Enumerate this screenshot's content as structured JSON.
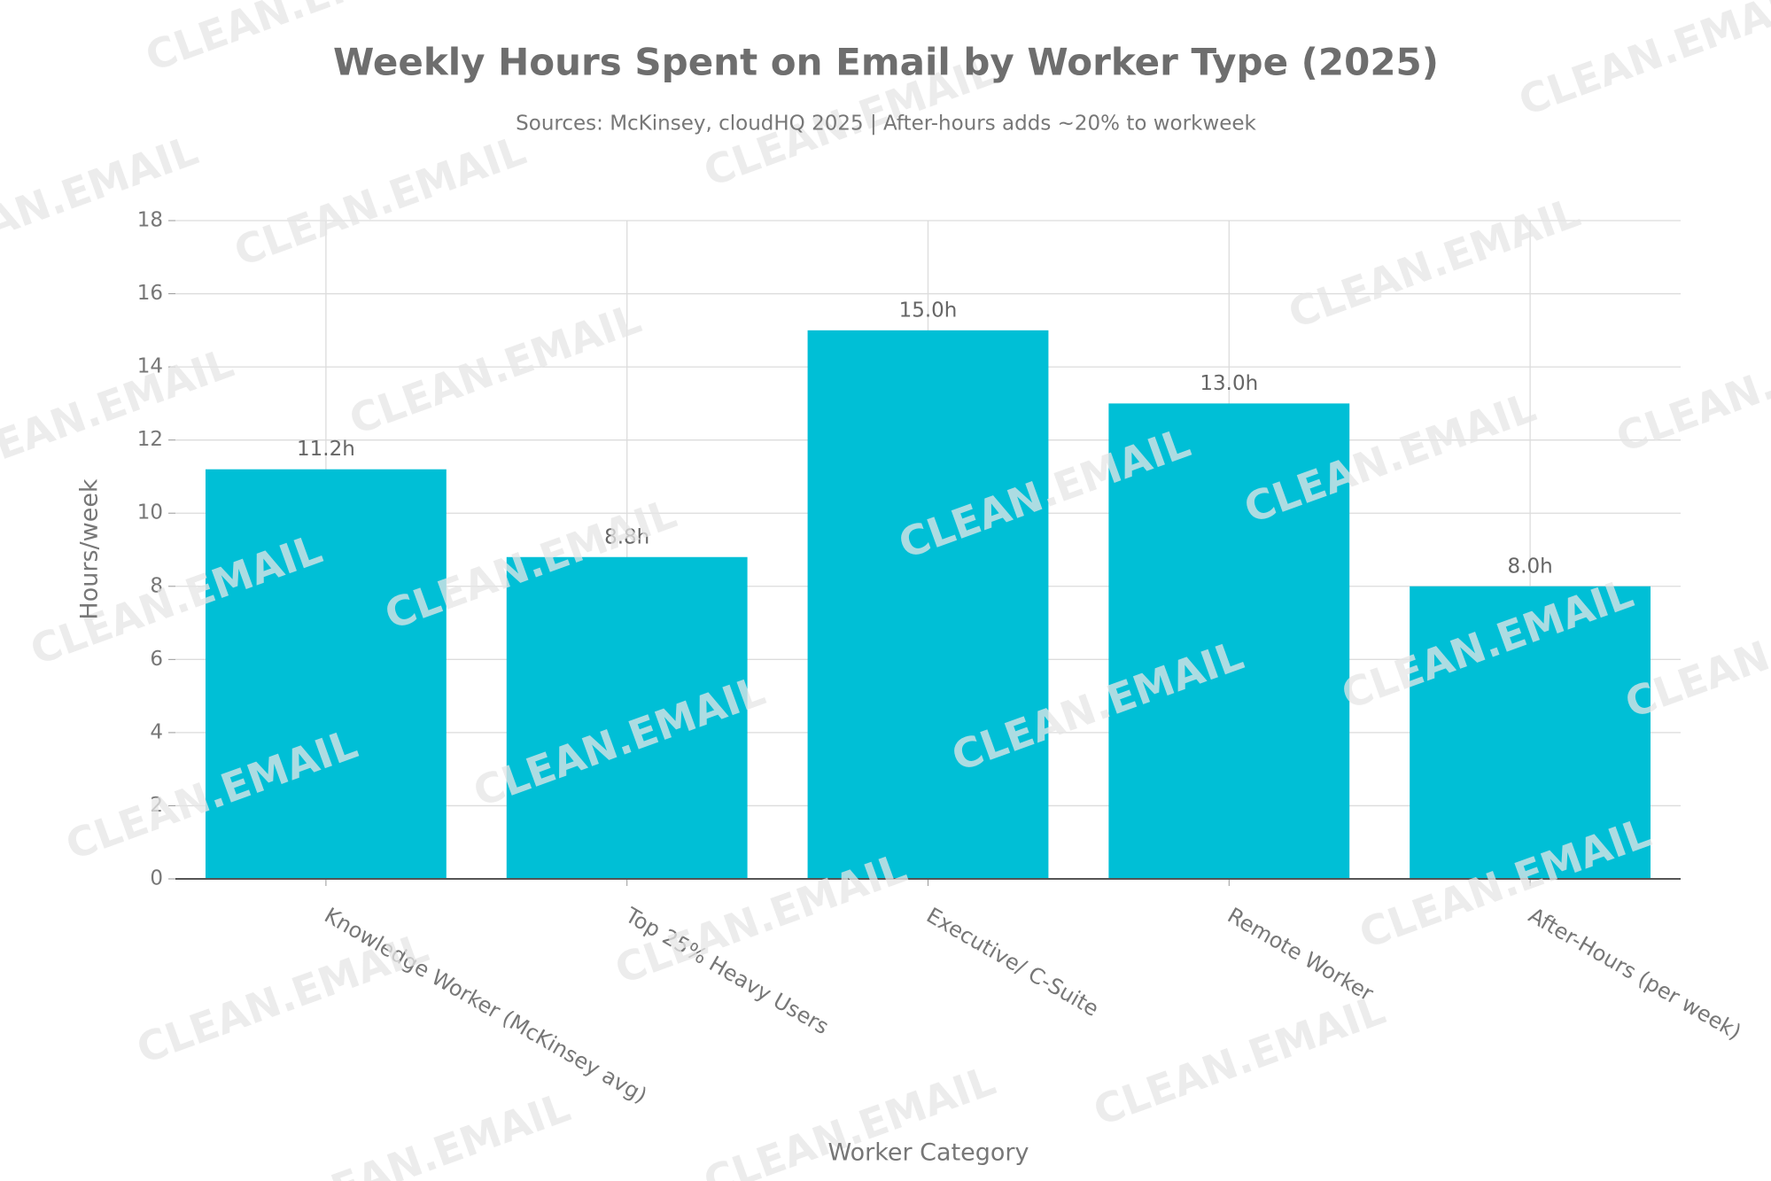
{
  "chart_data": {
    "type": "bar",
    "title": "Weekly Hours Spent on Email by Worker Type (2025)",
    "subtitle": "Sources: McKinsey, cloudHQ 2025 | After-hours adds ~20% to workweek",
    "x_label": "Worker Category",
    "y_label": "Hours/week",
    "categories": [
      "Knowledge Worker (McKinsey avg)",
      "Top 25% Heavy Users",
      "Executive/ C-Suite",
      "Remote Worker",
      "After-Hours (per week)"
    ],
    "values": [
      11.2,
      8.8,
      15.0,
      13.0,
      8.0
    ],
    "value_labels": [
      "11.2h",
      "8.8h",
      "15.0h",
      "13.0h",
      "8.0h"
    ],
    "color": "#00bfd6",
    "ylim": [
      0,
      18
    ],
    "yticks": [
      0,
      2,
      4,
      6,
      8,
      10,
      12,
      14,
      16,
      18
    ],
    "grid": true,
    "watermark": "CLEAN.EMAIL"
  }
}
